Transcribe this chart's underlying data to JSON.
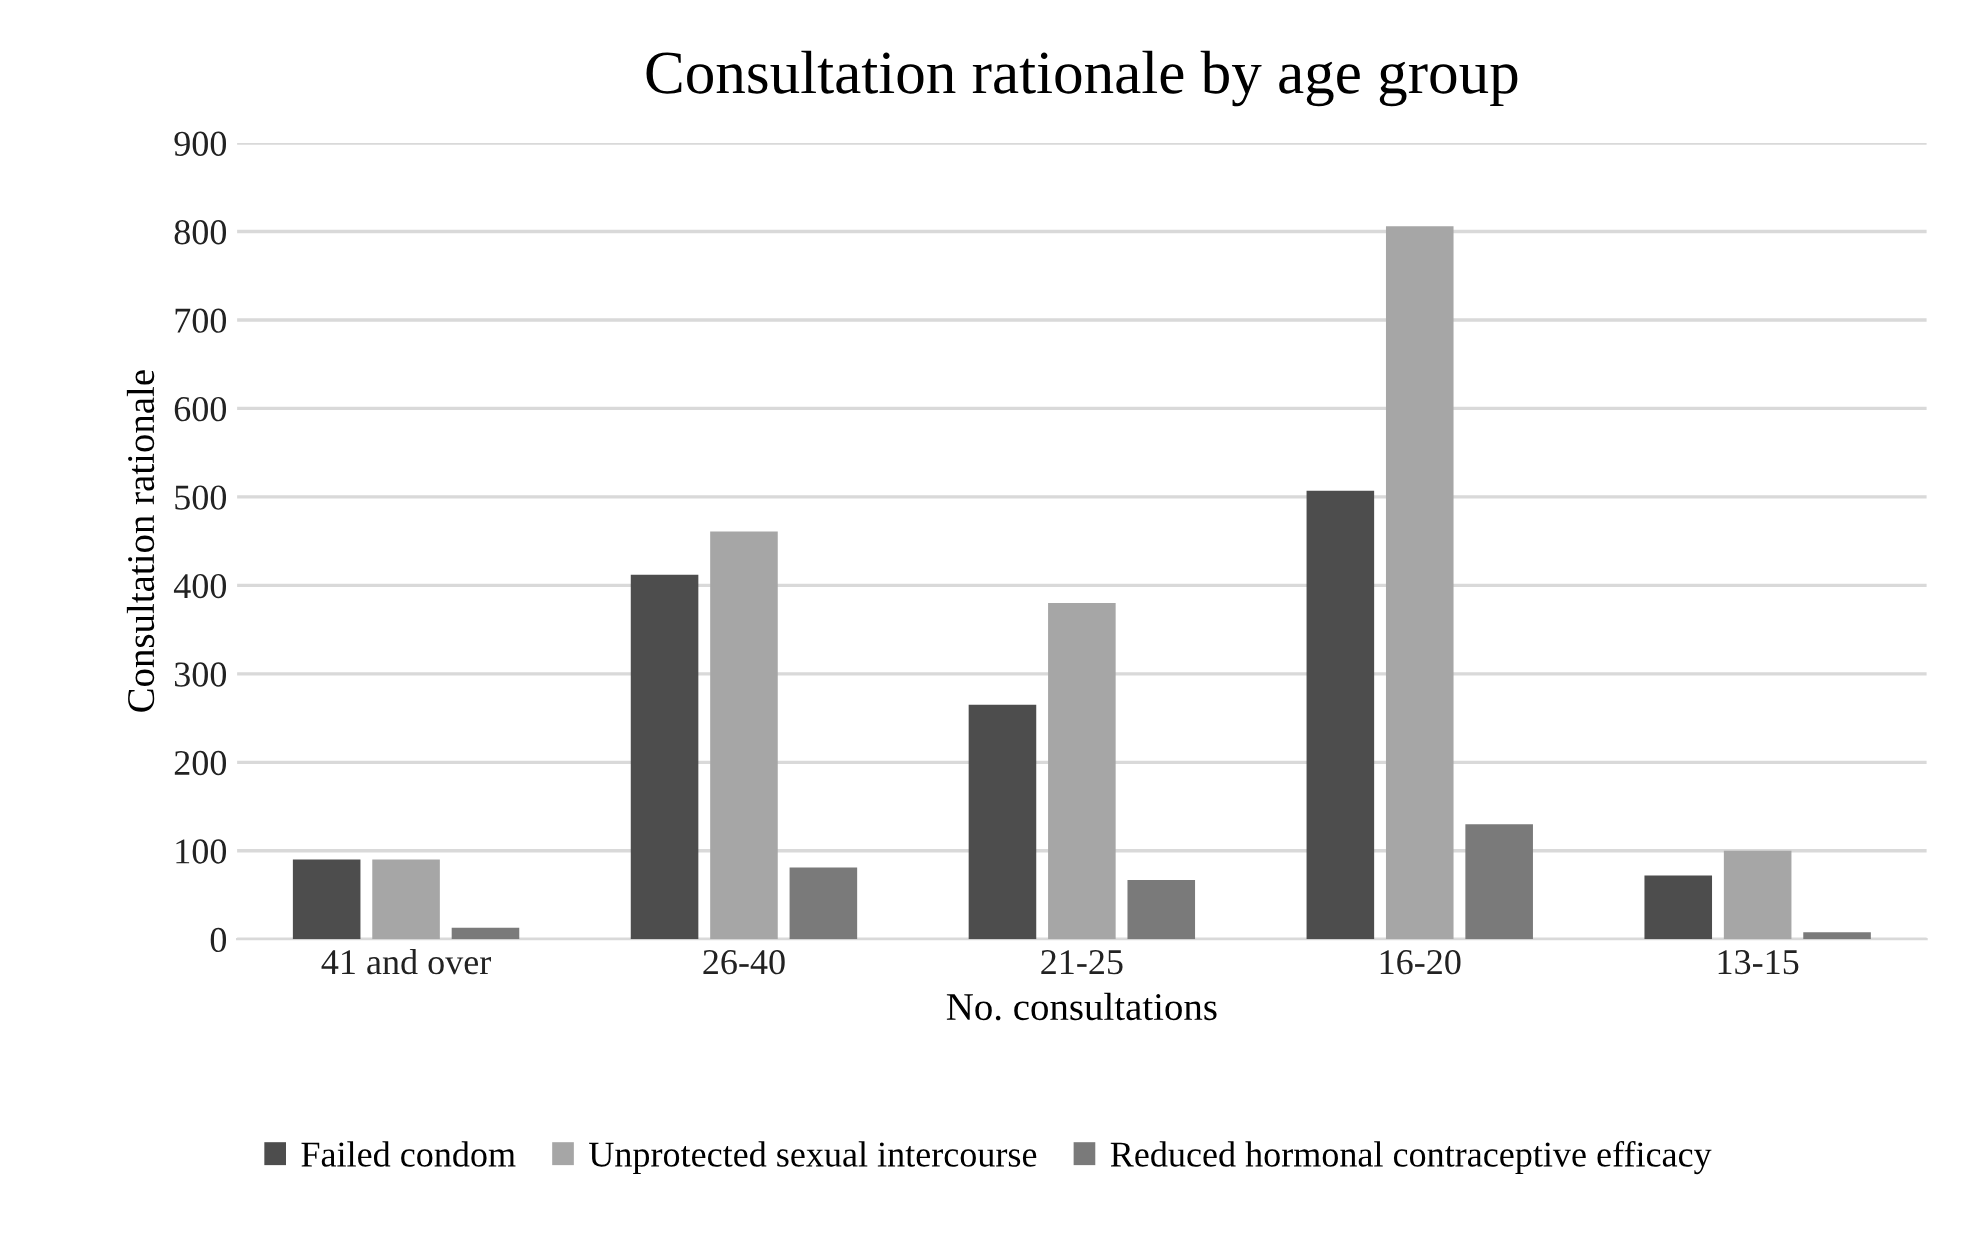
{
  "chart_data": {
    "type": "bar",
    "title": "Consultation rationale by age group",
    "xlabel": "No. consultations",
    "ylabel": "Consultation rationale",
    "categories": [
      "41 and over",
      "26-40",
      "21-25",
      "16-20",
      "13-15"
    ],
    "series": [
      {
        "name": "Failed condom",
        "color": "#4d4d4d",
        "values": [
          90,
          412,
          265,
          507,
          72
        ]
      },
      {
        "name": "Unprotected sexual intercourse",
        "color": "#a6a6a6",
        "values": [
          90,
          461,
          380,
          806,
          100
        ]
      },
      {
        "name": "Reduced hormonal contraceptive efficacy",
        "color": "#7a7a7a",
        "values": [
          13,
          81,
          67,
          130,
          8
        ]
      }
    ],
    "ylim": [
      0,
      900
    ],
    "yticks": [
      0,
      100,
      200,
      300,
      400,
      500,
      600,
      700,
      800,
      900
    ],
    "grid": "y",
    "legend": "bottom"
  }
}
